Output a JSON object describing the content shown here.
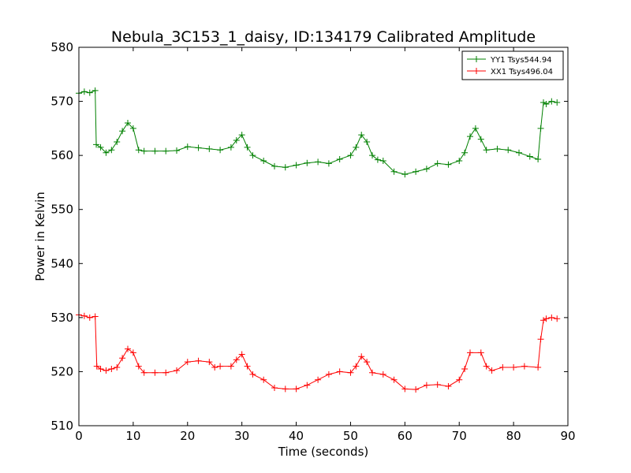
{
  "chart_data": {
    "type": "line",
    "title": "Nebula_3C153_1_daisy, ID:134179 Calibrated Amplitude",
    "xlabel": "Time (seconds)",
    "ylabel": "Power in Kelvin",
    "xlim": [
      0,
      90
    ],
    "ylim": [
      510,
      580
    ],
    "xticks": [
      "0",
      "10",
      "20",
      "30",
      "40",
      "50",
      "60",
      "70",
      "80",
      "90"
    ],
    "yticks": [
      "510",
      "520",
      "530",
      "540",
      "550",
      "560",
      "570",
      "580"
    ],
    "legend_position": "top-right",
    "marker": "+",
    "series": [
      {
        "name": "YY1 Tsys544.94",
        "color": "#008000",
        "points": [
          [
            0,
            571.5
          ],
          [
            1,
            571.8
          ],
          [
            2,
            571.6
          ],
          [
            3,
            572.0
          ],
          [
            3.2,
            562.0
          ],
          [
            4,
            561.5
          ],
          [
            5,
            560.5
          ],
          [
            6,
            561.0
          ],
          [
            7,
            562.5
          ],
          [
            8,
            564.5
          ],
          [
            9,
            566.0
          ],
          [
            10,
            565.0
          ],
          [
            11,
            561.0
          ],
          [
            12,
            560.8
          ],
          [
            14,
            560.8
          ],
          [
            16,
            560.8
          ],
          [
            18,
            560.9
          ],
          [
            20,
            561.6
          ],
          [
            22,
            561.4
          ],
          [
            24,
            561.2
          ],
          [
            26,
            561.0
          ],
          [
            28,
            561.5
          ],
          [
            29,
            562.8
          ],
          [
            30,
            563.8
          ],
          [
            31,
            561.5
          ],
          [
            32,
            560.0
          ],
          [
            34,
            559.0
          ],
          [
            36,
            558.0
          ],
          [
            38,
            557.8
          ],
          [
            40,
            558.2
          ],
          [
            42,
            558.6
          ],
          [
            44,
            558.8
          ],
          [
            46,
            558.5
          ],
          [
            48,
            559.3
          ],
          [
            50,
            560.0
          ],
          [
            51,
            561.5
          ],
          [
            52,
            563.8
          ],
          [
            53,
            562.5
          ],
          [
            54,
            560.0
          ],
          [
            55,
            559.2
          ],
          [
            56,
            559.0
          ],
          [
            58,
            557.0
          ],
          [
            60,
            556.5
          ],
          [
            62,
            557.0
          ],
          [
            64,
            557.5
          ],
          [
            66,
            558.5
          ],
          [
            68,
            558.3
          ],
          [
            70,
            559.0
          ],
          [
            71,
            560.5
          ],
          [
            72,
            563.5
          ],
          [
            73,
            565.0
          ],
          [
            74,
            563.0
          ],
          [
            75,
            561.0
          ],
          [
            77,
            561.2
          ],
          [
            79,
            561.0
          ],
          [
            81,
            560.5
          ],
          [
            83,
            559.8
          ],
          [
            84.5,
            559.3
          ],
          [
            85,
            565.0
          ],
          [
            85.5,
            569.8
          ],
          [
            86,
            569.5
          ],
          [
            87,
            570.0
          ],
          [
            88,
            569.8
          ]
        ]
      },
      {
        "name": "XX1 Tsys496.04",
        "color": "#ff0000",
        "points": [
          [
            0,
            530.5
          ],
          [
            1,
            530.3
          ],
          [
            2,
            530.0
          ],
          [
            3,
            530.2
          ],
          [
            3.3,
            521.0
          ],
          [
            4,
            520.5
          ],
          [
            5,
            520.2
          ],
          [
            6,
            520.5
          ],
          [
            7,
            520.8
          ],
          [
            8,
            522.5
          ],
          [
            9,
            524.2
          ],
          [
            10,
            523.5
          ],
          [
            11,
            521.0
          ],
          [
            12,
            519.8
          ],
          [
            14,
            519.8
          ],
          [
            16,
            519.8
          ],
          [
            18,
            520.2
          ],
          [
            20,
            521.8
          ],
          [
            22,
            522.0
          ],
          [
            24,
            521.8
          ],
          [
            25,
            520.8
          ],
          [
            26,
            521.0
          ],
          [
            28,
            521.0
          ],
          [
            29,
            522.2
          ],
          [
            30,
            523.2
          ],
          [
            31,
            521.0
          ],
          [
            32,
            519.5
          ],
          [
            34,
            518.5
          ],
          [
            36,
            517.0
          ],
          [
            38,
            516.8
          ],
          [
            40,
            516.8
          ],
          [
            42,
            517.5
          ],
          [
            44,
            518.5
          ],
          [
            46,
            519.5
          ],
          [
            48,
            520.0
          ],
          [
            50,
            519.8
          ],
          [
            51,
            521.0
          ],
          [
            52,
            522.8
          ],
          [
            53,
            521.8
          ],
          [
            54,
            519.8
          ],
          [
            56,
            519.5
          ],
          [
            58,
            518.5
          ],
          [
            60,
            516.8
          ],
          [
            62,
            516.7
          ],
          [
            64,
            517.5
          ],
          [
            66,
            517.6
          ],
          [
            68,
            517.3
          ],
          [
            70,
            518.5
          ],
          [
            71,
            520.5
          ],
          [
            72,
            523.5
          ],
          [
            74,
            523.5
          ],
          [
            75,
            521.0
          ],
          [
            76,
            520.2
          ],
          [
            78,
            520.8
          ],
          [
            80,
            520.8
          ],
          [
            82,
            521.0
          ],
          [
            84.5,
            520.8
          ],
          [
            85,
            526.0
          ],
          [
            85.5,
            529.5
          ],
          [
            86,
            529.8
          ],
          [
            87,
            530.0
          ],
          [
            88,
            529.8
          ]
        ]
      }
    ]
  }
}
